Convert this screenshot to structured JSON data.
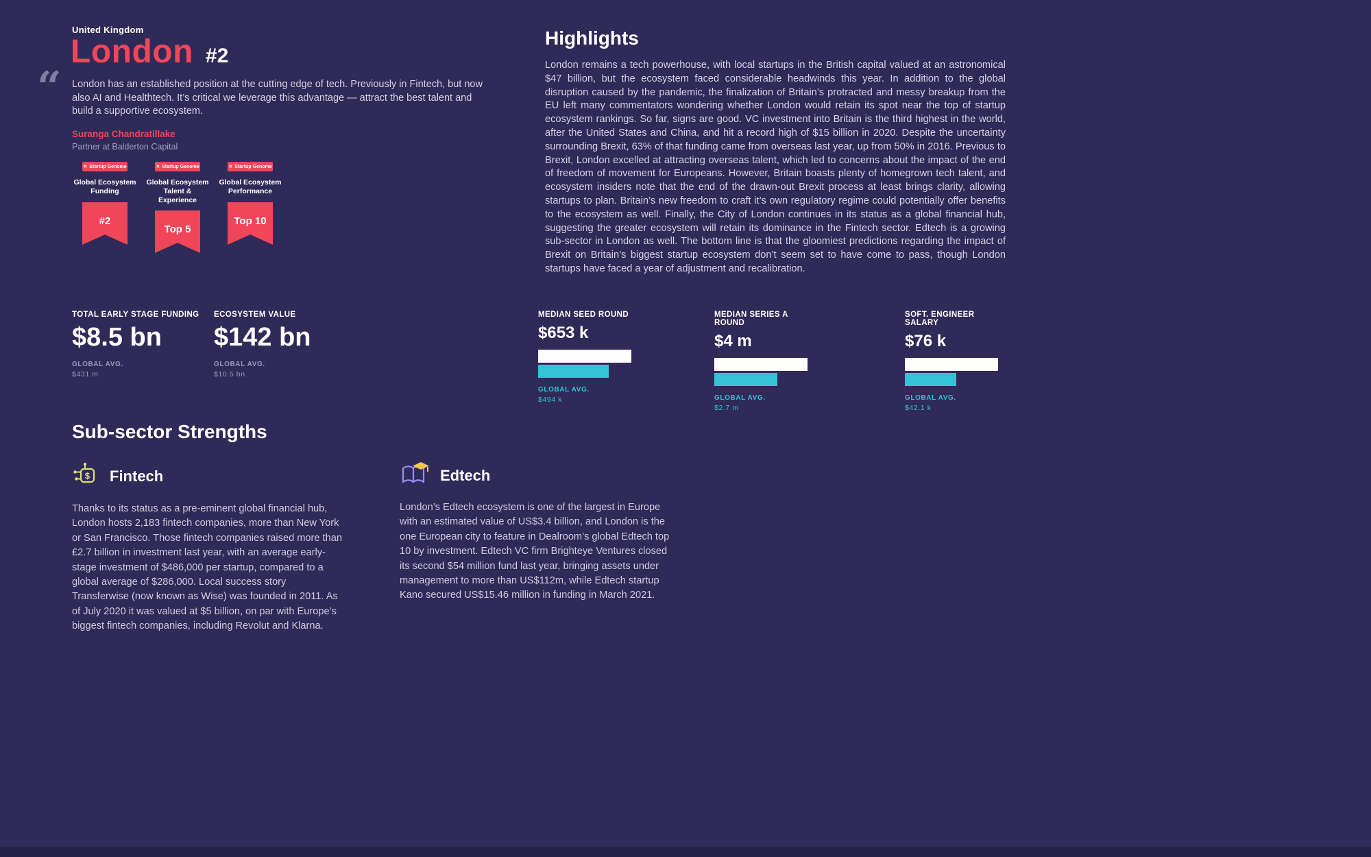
{
  "header": {
    "country": "United Kingdom",
    "city": "London",
    "rank": "#2"
  },
  "quote": {
    "mark": "“",
    "text": "London has an established position at the cutting edge of tech. Previously in Fintech, but now also AI and Healthtech. It’s critical we leverage this advantage — attract the best talent and build a supportive ecosystem.",
    "author": "Suranga Chandratillake",
    "role": "Partner at Balderton Capital"
  },
  "badges": [
    {
      "logo_mark": "✕",
      "brand": "Startup Genome",
      "label": "Global Ecosystem Funding",
      "value": "#2"
    },
    {
      "logo_mark": "✕",
      "brand": "Startup Genome",
      "label": "Global Ecosystem Talent & Experience",
      "value": "Top 5"
    },
    {
      "logo_mark": "✕",
      "brand": "Startup Genome",
      "label": "Global Ecosystem Performance",
      "value": "Top 10"
    }
  ],
  "highlights": {
    "title": "Highlights",
    "body": "London remains a tech powerhouse, with local startups in the British capital valued at an astronomical $47 billion, but the ecosystem faced considerable headwinds this year. In addition to the global disruption caused by the pandemic, the finalization of Britain’s protracted and messy breakup from the EU left many commentators wondering whether London would retain its spot near the top of startup ecosystem rankings. So far, signs are good. VC investment into Britain is the third highest in the world, after the United States and China, and hit a record high of $15 billion in 2020. Despite the uncertainty surrounding Brexit, 63% of that funding came from overseas last year, up from 50% in 2016. Previous to Brexit, London excelled at attracting overseas talent, which led to concerns about the impact of the end of freedom of movement for Europeans. However, Britain boasts plenty of homegrown tech talent, and ecosystem insiders note that the end of the drawn-out Brexit process at least brings clarity, allowing startups to plan. Britain’s new freedom to craft it’s own regulatory regime could potentially offer benefits to the ecosystem as well. Finally, the City of London continues in its status as a global financial hub, suggesting the greater ecosystem will retain its dominance in the Fintech sector. Edtech is a growing sub-sector in London as well. The bottom line is that the gloomiest predictions regarding the impact of Brexit on Britain’s biggest startup ecosystem don’t seem set to have come to pass, though London startups have faced a year of adjustment and recalibration."
  },
  "stats_left": [
    {
      "label": "TOTAL EARLY STAGE FUNDING",
      "value": "$8.5 bn",
      "global_label": "GLOBAL AVG.",
      "global_value": "$431 m"
    },
    {
      "label": "ECOSYSTEM VALUE",
      "value": "$142 bn",
      "global_label": "GLOBAL AVG.",
      "global_value": "$10.5 bn"
    }
  ],
  "stats_bars": [
    {
      "label": "MEDIAN SEED ROUND",
      "value": "$653 k",
      "global_label": "GLOBAL AVG.",
      "global_value": "$494 k",
      "global_pct": 76
    },
    {
      "label": "MEDIAN SERIES A ROUND",
      "value": "$4 m",
      "global_label": "GLOBAL AVG.",
      "global_value": "$2.7 m",
      "global_pct": 68
    },
    {
      "label": "SOFT. ENGINEER SALARY",
      "value": "$76 k",
      "global_label": "GLOBAL AVG.",
      "global_value": "$42.1 k",
      "global_pct": 55
    }
  ],
  "subsectors": {
    "title": "Sub-sector Strengths",
    "items": [
      {
        "name": "Fintech",
        "icon": "fintech-circuit-dollar-icon",
        "body": "Thanks to its status as a pre-eminent global financial hub, London hosts 2,183 fintech companies, more than New York or San Francisco. Those fintech companies raised more than £2.7 billion in investment last year, with an average early-stage investment of $486,000 per startup, compared to a global average of $286,000. Local success story Transferwise (now known as Wise) was founded in 2011. As of July 2020 it was valued at $5 billion, on par with Europe’s biggest fintech companies, including Revolut and Klarna."
      },
      {
        "name": "Edtech",
        "icon": "edtech-book-gradcap-icon",
        "body": "London’s Edtech ecosystem is one of the largest in Europe with an estimated value of US$3.4 billion, and London is the one European city to feature in Dealroom’s global Edtech top 10 by investment. Edtech VC firm Brighteye Ventures closed its second $54 million fund last year, bringing assets under management to more than US$112m, while Edtech startup Kano secured US$15.46 million in funding in March 2021."
      }
    ]
  },
  "colors": {
    "background": "#2f2a57",
    "accent_red": "#f14659",
    "accent_cyan": "#35c3d7",
    "text_light": "#d6d3e6",
    "text_muted": "#9c98bb"
  }
}
